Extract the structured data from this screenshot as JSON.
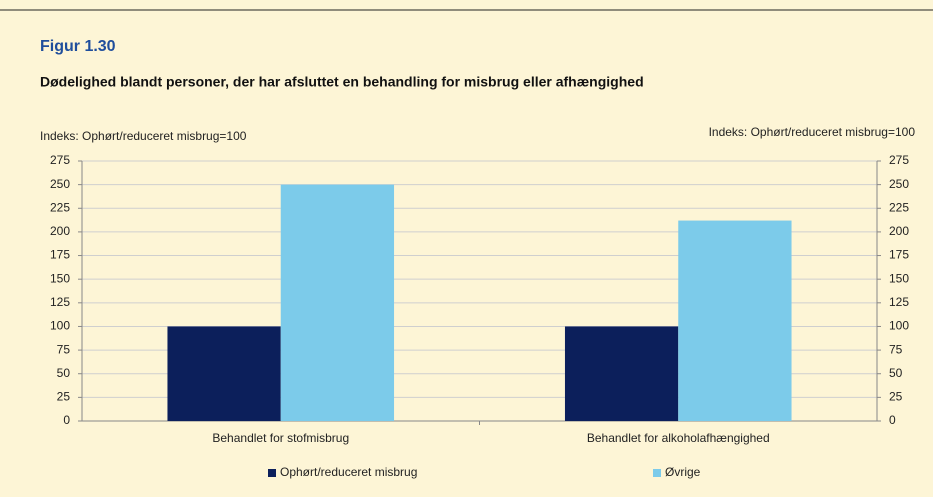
{
  "chart_data": {
    "type": "bar",
    "title": "Figur 1.30",
    "subtitle": "Dødelighed blandt personer, der har afsluttet en behandling for misbrug eller afhængighed",
    "ylabel": "Indeks: Ophørt/reduceret misbrug=100",
    "y2label": "Indeks: Ophørt/reduceret misbrug=100",
    "categories": [
      "Behandlet for stofmisbrug",
      "Behandlet for alkoholafhængighed"
    ],
    "series": [
      {
        "name": "Ophørt/reduceret misbrug",
        "color": "#0c1f5b",
        "values": [
          100,
          100
        ]
      },
      {
        "name": "Øvrige",
        "color": "#7ccbea",
        "values": [
          250,
          212
        ]
      }
    ],
    "ylim": [
      0,
      275
    ],
    "yticks": [
      0,
      25,
      50,
      75,
      100,
      125,
      150,
      175,
      200,
      225,
      250,
      275
    ],
    "y2lim": [
      0,
      275
    ],
    "y2ticks": [
      0,
      25,
      50,
      75,
      100,
      125,
      150,
      175,
      200,
      225,
      250,
      275
    ],
    "grid": true,
    "legend": "bottom"
  }
}
